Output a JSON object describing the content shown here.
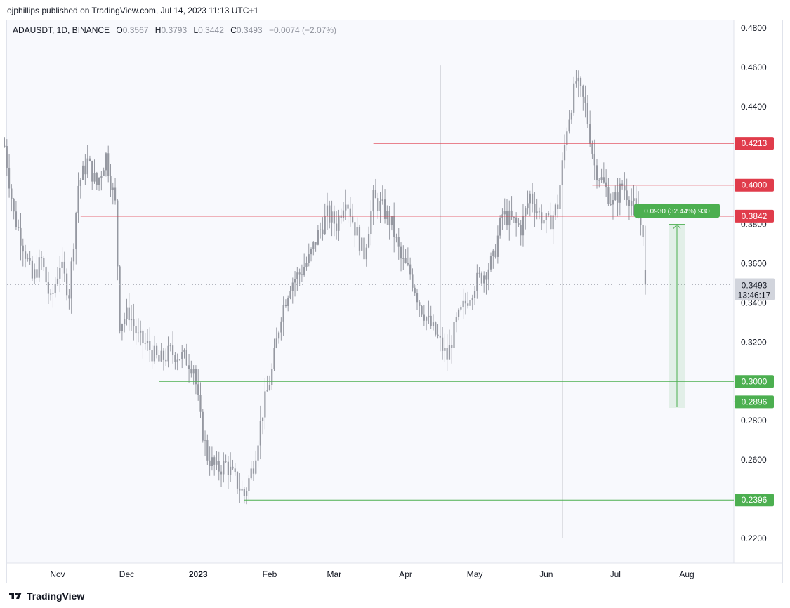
{
  "header": {
    "published": "ojphillips published on TradingView.com, Jul 14, 2023 11:13 UTC+1"
  },
  "legend": {
    "symbol": "ADAUSDT, 1D, BINANCE",
    "o_label": "O",
    "o_val": "0.3567",
    "h_label": "H",
    "h_val": "0.3793",
    "l_label": "L",
    "l_val": "0.3442",
    "c_label": "C",
    "c_val": "0.3493",
    "change": "−0.0074 (−2.07%)"
  },
  "footer": {
    "brand": "TradingView"
  },
  "colors": {
    "candle": "#9598a1",
    "resistance": "#e03c4b",
    "support": "#4caf50",
    "measure": "#4caf50",
    "price_tag": "#d1d4dc"
  },
  "chart_data": {
    "type": "candlestick",
    "symbol": "ADAUSDT",
    "interval": "1D",
    "exchange": "BINANCE",
    "ylim": [
      0.215,
      0.485
    ],
    "y_ticks": [
      "0.4800",
      "0.4600",
      "0.4400",
      "0.4200",
      "0.4000",
      "0.3800",
      "0.3600",
      "0.3400",
      "0.3200",
      "0.3000",
      "0.2800",
      "0.2600",
      "0.2400",
      "0.2200"
    ],
    "x_ticks": [
      {
        "label": "Nov",
        "day": 31,
        "bold": false
      },
      {
        "label": "Dec",
        "day": 61,
        "bold": false
      },
      {
        "label": "2023",
        "day": 92,
        "bold": true
      },
      {
        "label": "Feb",
        "day": 123,
        "bold": false
      },
      {
        "label": "Mar",
        "day": 151,
        "bold": false
      },
      {
        "label": "Apr",
        "day": 182,
        "bold": false
      },
      {
        "label": "May",
        "day": 212,
        "bold": false
      },
      {
        "label": "Jun",
        "day": 243,
        "bold": false
      },
      {
        "label": "Jul",
        "day": 273,
        "bold": false
      },
      {
        "label": "Aug",
        "day": 304,
        "bold": false
      }
    ],
    "day_range": [
      8,
      324
    ],
    "candle_days": [
      8,
      286
    ],
    "waypoints": [
      [
        8,
        0.42
      ],
      [
        12,
        0.385
      ],
      [
        16,
        0.37
      ],
      [
        20,
        0.352
      ],
      [
        24,
        0.362
      ],
      [
        28,
        0.34
      ],
      [
        32,
        0.36
      ],
      [
        36,
        0.345
      ],
      [
        40,
        0.4
      ],
      [
        44,
        0.412
      ],
      [
        48,
        0.4
      ],
      [
        52,
        0.415
      ],
      [
        56,
        0.39
      ],
      [
        58,
        0.33
      ],
      [
        62,
        0.335
      ],
      [
        66,
        0.322
      ],
      [
        70,
        0.318
      ],
      [
        75,
        0.31
      ],
      [
        80,
        0.315
      ],
      [
        86,
        0.312
      ],
      [
        90,
        0.308
      ],
      [
        93,
        0.28
      ],
      [
        96,
        0.262
      ],
      [
        100,
        0.255
      ],
      [
        104,
        0.258
      ],
      [
        108,
        0.25
      ],
      [
        112,
        0.242
      ],
      [
        116,
        0.258
      ],
      [
        120,
        0.285
      ],
      [
        124,
        0.305
      ],
      [
        128,
        0.335
      ],
      [
        132,
        0.35
      ],
      [
        136,
        0.355
      ],
      [
        140,
        0.362
      ],
      [
        144,
        0.375
      ],
      [
        148,
        0.385
      ],
      [
        152,
        0.38
      ],
      [
        156,
        0.395
      ],
      [
        160,
        0.378
      ],
      [
        164,
        0.365
      ],
      [
        168,
        0.393
      ],
      [
        172,
        0.388
      ],
      [
        176,
        0.38
      ],
      [
        180,
        0.362
      ],
      [
        184,
        0.355
      ],
      [
        188,
        0.34
      ],
      [
        192,
        0.33
      ],
      [
        196,
        0.322
      ],
      [
        200,
        0.312
      ],
      [
        204,
        0.33
      ],
      [
        208,
        0.34
      ],
      [
        212,
        0.35
      ],
      [
        216,
        0.355
      ],
      [
        220,
        0.362
      ],
      [
        224,
        0.385
      ],
      [
        228,
        0.382
      ],
      [
        232,
        0.378
      ],
      [
        236,
        0.395
      ],
      [
        240,
        0.385
      ],
      [
        244,
        0.38
      ],
      [
        248,
        0.39
      ],
      [
        252,
        0.43
      ],
      [
        256,
        0.453
      ],
      [
        260,
        0.44
      ],
      [
        264,
        0.41
      ],
      [
        268,
        0.4
      ],
      [
        272,
        0.39
      ],
      [
        276,
        0.4
      ],
      [
        280,
        0.392
      ],
      [
        284,
        0.38
      ],
      [
        288,
        0.372
      ],
      [
        292,
        0.368
      ],
      [
        296,
        0.372
      ],
      [
        300,
        0.375
      ],
      [
        304,
        0.37
      ],
      [
        308,
        0.368
      ],
      [
        312,
        0.38
      ],
      [
        316,
        0.375
      ],
      [
        320,
        0.365
      ],
      [
        324,
        0.35
      ],
      [
        328,
        0.32
      ],
      [
        332,
        0.3
      ],
      [
        336,
        0.278
      ],
      [
        340,
        0.268
      ],
      [
        344,
        0.265
      ],
      [
        348,
        0.27
      ],
      [
        352,
        0.282
      ],
      [
        356,
        0.29
      ],
      [
        360,
        0.288
      ],
      [
        364,
        0.278
      ],
      [
        368,
        0.285
      ],
      [
        372,
        0.29
      ],
      [
        376,
        0.285
      ],
      [
        380,
        0.283
      ],
      [
        384,
        0.292
      ],
      [
        386,
        0.35
      ]
    ],
    "last_candle": {
      "open": 0.3567,
      "high": 0.3793,
      "low": 0.3442,
      "close": 0.3493
    },
    "price_lines": [
      {
        "value": 0.4213,
        "label": "0.4213",
        "kind": "resistance",
        "from_day": 168
      },
      {
        "value": 0.4,
        "label": "0.4000",
        "kind": "resistance",
        "from_day": 263
      },
      {
        "value": 0.3842,
        "label": "0.3842",
        "kind": "resistance",
        "from_day": 41
      },
      {
        "value": 0.3,
        "label": "0.3000",
        "kind": "support",
        "from_day": 75
      },
      {
        "value": 0.2896,
        "label": "0.2896",
        "kind": "support",
        "from_day": 330
      },
      {
        "value": 0.2396,
        "label": "0.2396",
        "kind": "support",
        "from_day": 112
      }
    ],
    "current_price": {
      "value": 0.3493,
      "label": "0.3493",
      "countdown": "13:46:17"
    },
    "measure": {
      "from": 0.287,
      "to": 0.38,
      "label": "0.0930 (32.44%) 930"
    }
  }
}
